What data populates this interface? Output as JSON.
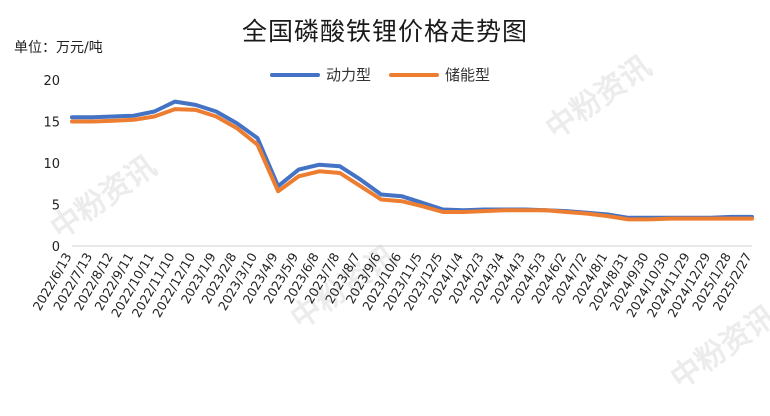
{
  "chart_data": {
    "type": "line",
    "title": "全国磷酸铁锂价格走势图",
    "unit_label": "单位：万元/吨",
    "ylim": [
      0,
      20
    ],
    "yticks": [
      0,
      5,
      10,
      15,
      20
    ],
    "grid": false,
    "legend_position": "top",
    "x_tick_labels": [
      "2022/6/13",
      "2022/7/13",
      "2022/8/12",
      "2022/9/11",
      "2022/10/11",
      "2022/11/10",
      "2022/12/10",
      "2023/1/9",
      "2023/2/8",
      "2023/3/10",
      "2023/4/9",
      "2023/5/9",
      "2023/6/8",
      "2023/7/8",
      "2023/8/7",
      "2023/9/6",
      "2023/10/6",
      "2023/11/5",
      "2023/12/5",
      "2024/1/4",
      "2024/2/3",
      "2024/3/4",
      "2024/4/3",
      "2024/5/3",
      "2024/6/2",
      "2024/7/2",
      "2024/8/1",
      "2024/8/31",
      "2024/9/30",
      "2024/10/30",
      "2024/11/29",
      "2024/12/29",
      "2025/1/28",
      "2025/2/27"
    ],
    "series": [
      {
        "name": "动力型",
        "color": "#4472C4",
        "values": [
          15.5,
          15.5,
          15.6,
          15.7,
          16.2,
          17.4,
          17.0,
          16.2,
          14.8,
          13.0,
          7.2,
          9.2,
          9.8,
          9.6,
          8.0,
          6.2,
          6.0,
          5.2,
          4.4,
          4.3,
          4.4,
          4.4,
          4.4,
          4.3,
          4.2,
          4.0,
          3.8,
          3.4,
          3.4,
          3.4,
          3.4,
          3.4,
          3.5,
          3.5
        ]
      },
      {
        "name": "储能型",
        "color": "#ED7D31",
        "values": [
          15.0,
          15.0,
          15.1,
          15.2,
          15.6,
          16.5,
          16.4,
          15.6,
          14.2,
          12.2,
          6.6,
          8.4,
          9.0,
          8.8,
          7.2,
          5.6,
          5.4,
          4.8,
          4.1,
          4.1,
          4.2,
          4.3,
          4.3,
          4.3,
          4.1,
          3.9,
          3.6,
          3.2,
          3.2,
          3.3,
          3.3,
          3.3,
          3.3,
          3.3
        ]
      }
    ]
  },
  "watermark": "中粉资讯"
}
